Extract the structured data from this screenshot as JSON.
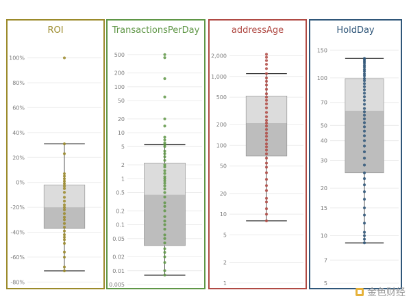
{
  "chart_data": [
    {
      "type": "box",
      "title": "ROI",
      "color": "#9b8a2a",
      "scale": "linear",
      "ylim": [
        -82,
        108
      ],
      "ticks": [
        {
          "v": 100,
          "label": "100%"
        },
        {
          "v": 80,
          "label": "80%"
        },
        {
          "v": 60,
          "label": "60%"
        },
        {
          "v": 40,
          "label": "40%"
        },
        {
          "v": 20,
          "label": "20%"
        },
        {
          "v": 0,
          "label": "0%"
        },
        {
          "v": -20,
          "label": "-20%"
        },
        {
          "v": -40,
          "label": "-40%"
        },
        {
          "v": -60,
          "label": "-60%"
        },
        {
          "v": -80,
          "label": "-80%"
        }
      ],
      "box": {
        "whisker_low": -71,
        "q1": -37,
        "median": -20,
        "q3": -2,
        "whisker_high": 31
      },
      "points": [
        100,
        31,
        23,
        7,
        5,
        3,
        1,
        -1,
        -3,
        -5,
        -8,
        -12,
        -15,
        -18,
        -20,
        -22,
        -25,
        -28,
        -30,
        -33,
        -36,
        -39,
        -42,
        -44,
        -46,
        -49,
        -56,
        -60,
        -68,
        -71
      ]
    },
    {
      "type": "box",
      "title": "TransactionsPerDay",
      "color": "#5f9646",
      "scale": "log",
      "ylim": [
        0.005,
        700
      ],
      "ticks": [
        {
          "v": 500,
          "label": "500"
        },
        {
          "v": 200,
          "label": "200"
        },
        {
          "v": 100,
          "label": "100"
        },
        {
          "v": 50,
          "label": "50"
        },
        {
          "v": 20,
          "label": "20"
        },
        {
          "v": 10,
          "label": "10"
        },
        {
          "v": 5,
          "label": "5"
        },
        {
          "v": 2,
          "label": "2"
        },
        {
          "v": 1,
          "label": "1"
        },
        {
          "v": 0.5,
          "label": "0.5"
        },
        {
          "v": 0.2,
          "label": "0.2"
        },
        {
          "v": 0.1,
          "label": "0.1"
        },
        {
          "v": 0.05,
          "label": "0.05"
        },
        {
          "v": 0.02,
          "label": "0.02"
        },
        {
          "v": 0.01,
          "label": "0.01"
        },
        {
          "v": 0.005,
          "label": "0.005"
        }
      ],
      "box": {
        "whisker_low": 0.008,
        "q1": 0.035,
        "median": 0.45,
        "q3": 2.2,
        "whisker_high": 5.5
      },
      "points": [
        500,
        430,
        150,
        60,
        20,
        14,
        8,
        7,
        6,
        5.5,
        5,
        4,
        3.5,
        3,
        2.5,
        2,
        1.8,
        1.5,
        1.3,
        1.1,
        1,
        0.9,
        0.8,
        0.7,
        0.6,
        0.5,
        0.4,
        0.3,
        0.25,
        0.2,
        0.15,
        0.12,
        0.1,
        0.08,
        0.06,
        0.05,
        0.04,
        0.03,
        0.025,
        0.02,
        0.015,
        0.01,
        0.008
      ]
    },
    {
      "type": "box",
      "title": "addressAge",
      "color": "#b04a44",
      "scale": "log",
      "ylim": [
        0.95,
        2600
      ],
      "ticks": [
        {
          "v": 2000,
          "label": "2,000"
        },
        {
          "v": 1000,
          "label": "1,000"
        },
        {
          "v": 500,
          "label": "500"
        },
        {
          "v": 200,
          "label": "200"
        },
        {
          "v": 100,
          "label": "100"
        },
        {
          "v": 50,
          "label": "50"
        },
        {
          "v": 20,
          "label": "20"
        },
        {
          "v": 10,
          "label": "10"
        },
        {
          "v": 5,
          "label": "5"
        },
        {
          "v": 2,
          "label": "2"
        },
        {
          "v": 1,
          "label": "1"
        }
      ],
      "box": {
        "whisker_low": 8,
        "q1": 70,
        "median": 210,
        "q3": 520,
        "whisker_high": 1100
      },
      "points": [
        2100,
        1900,
        1700,
        1500,
        1300,
        1100,
        950,
        850,
        750,
        650,
        560,
        500,
        450,
        400,
        350,
        300,
        260,
        230,
        210,
        190,
        170,
        150,
        135,
        120,
        105,
        95,
        85,
        75,
        65,
        55,
        48,
        40,
        32,
        26,
        22,
        17,
        15,
        12,
        10,
        8
      ]
    },
    {
      "type": "box",
      "title": "HoldDay",
      "color": "#2f5679",
      "scale": "log",
      "ylim": [
        4.9,
        155
      ],
      "ticks": [
        {
          "v": 150,
          "label": "150"
        },
        {
          "v": 100,
          "label": "100"
        },
        {
          "v": 70,
          "label": "70"
        },
        {
          "v": 50,
          "label": "50"
        },
        {
          "v": 40,
          "label": "40"
        },
        {
          "v": 30,
          "label": "30"
        },
        {
          "v": 20,
          "label": "20"
        },
        {
          "v": 15,
          "label": "15"
        },
        {
          "v": 10,
          "label": "10"
        },
        {
          "v": 7,
          "label": "7"
        },
        {
          "v": 5,
          "label": "5"
        }
      ],
      "box": {
        "whisker_low": 9,
        "q1": 25,
        "median": 62,
        "q3": 99,
        "whisker_high": 133
      },
      "points": [
        133,
        130,
        127,
        124,
        120,
        117,
        113,
        110,
        106,
        103,
        99,
        96,
        92,
        88,
        84,
        80,
        76,
        72,
        68,
        64,
        61,
        58,
        55,
        52,
        49,
        46,
        43,
        40,
        37,
        34,
        31,
        28,
        25,
        23,
        21,
        19,
        17,
        15,
        13.5,
        12,
        10.5,
        10,
        9.5,
        9
      ]
    }
  ],
  "watermark": "金色财经"
}
